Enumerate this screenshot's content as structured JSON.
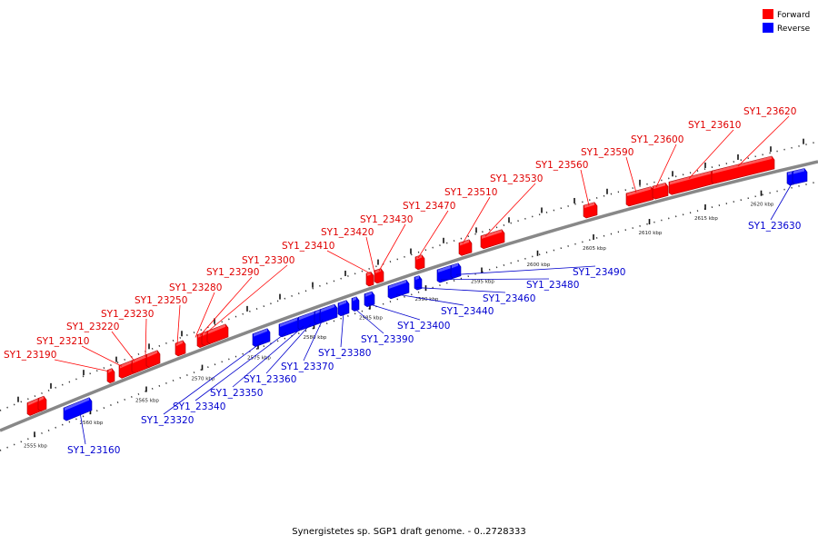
{
  "legend": {
    "items": [
      {
        "label": "Forward",
        "color": "#ff0000"
      },
      {
        "label": "Reverse",
        "color": "#0000ff"
      }
    ]
  },
  "caption": "Synergistetes sp. SGP1 draft genome. - 0..2728333",
  "colors": {
    "forward": "#ff0000",
    "reverse": "#0000ff",
    "backbone": "#888888"
  },
  "ticks": [
    "2555 kbp",
    "2560 kbp",
    "2565 kbp",
    "2570 kbp",
    "2575 kbp",
    "2580 kbp",
    "2585 kbp",
    "2590 kbp",
    "2595 kbp",
    "2600 kbp",
    "2605 kbp",
    "2610 kbp",
    "2615 kbp",
    "2620 kbp"
  ],
  "forward_genes": [
    "SY1_23190",
    "SY1_23210",
    "SY1_23220",
    "SY1_23230",
    "SY1_23250",
    "SY1_23280",
    "SY1_23290",
    "SY1_23300",
    "SY1_23410",
    "SY1_23420",
    "SY1_23430",
    "SY1_23470",
    "SY1_23510",
    "SY1_23530",
    "SY1_23560",
    "SY1_23590",
    "SY1_23600",
    "SY1_23610",
    "SY1_23620"
  ],
  "reverse_genes": [
    "SY1_23160",
    "SY1_23320",
    "SY1_23340",
    "SY1_23350",
    "SY1_23360",
    "SY1_23370",
    "SY1_23380",
    "SY1_23390",
    "SY1_23400",
    "SY1_23440",
    "SY1_23460",
    "SY1_23480",
    "SY1_23490",
    "SY1_23630"
  ]
}
